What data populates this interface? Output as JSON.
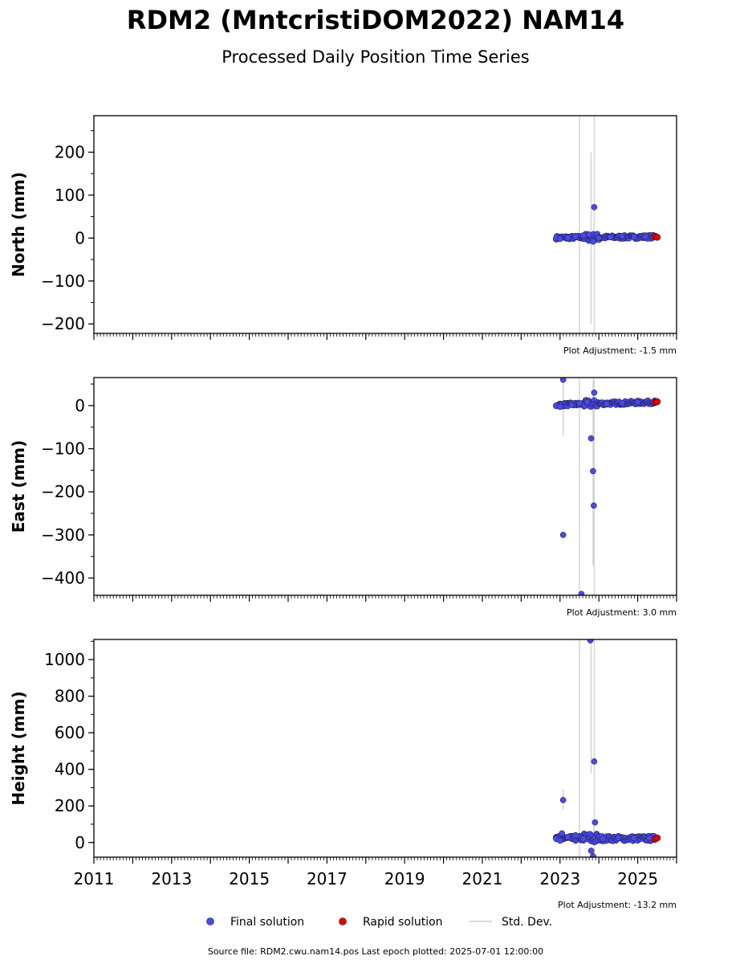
{
  "chart_data": {
    "type": "scatter",
    "title": "RDM2 (MntcristiDOM2022) NAM14",
    "subtitle": "Processed Daily Position Time Series",
    "footer": "Source file: RDM2.cwu.nam14.pos  Last epoch plotted: 2025-07-01 12:00:00",
    "xlim": [
      2011.0,
      2026.0
    ],
    "x_tick_labels": [
      "2011",
      "2013",
      "2015",
      "2017",
      "2019",
      "2021",
      "2023",
      "2025"
    ],
    "legend": {
      "placement": "bottom-center",
      "entries": [
        "Final solution",
        "Rapid solution",
        "Std. Dev."
      ]
    },
    "colors": {
      "final": "#4a4ae6",
      "rapid": "#e60000",
      "stddev": "#d3d3d3"
    },
    "panels": [
      {
        "ylabel": "North (mm)",
        "ylim": [
          -222,
          285
        ],
        "y_ticks": [
          -200,
          -100,
          0,
          100,
          200
        ],
        "y_tick_labels": [
          "−200",
          "−100",
          "0",
          "100",
          "200"
        ],
        "adjustment": "Plot Adjustment: -1.5 mm",
        "series": {
          "final_range": [
            2022.9,
            2025.45
          ],
          "final_points": [
            [
              2022.9,
              0
            ],
            [
              2023.0,
              -2
            ],
            [
              2023.2,
              1
            ],
            [
              2023.4,
              3
            ],
            [
              2023.6,
              6
            ],
            [
              2023.75,
              8
            ],
            [
              2023.85,
              -8
            ],
            [
              2023.88,
              72
            ],
            [
              2024.0,
              0
            ],
            [
              2024.3,
              2
            ],
            [
              2024.6,
              4
            ],
            [
              2024.9,
              3
            ],
            [
              2025.2,
              3
            ],
            [
              2025.4,
              3
            ]
          ],
          "rapid_points": [
            [
              2025.45,
              4
            ],
            [
              2025.5,
              2
            ]
          ],
          "stddev": [
            [
              2023.5,
              -222,
              285
            ],
            [
              2023.8,
              -200,
              200
            ],
            [
              2023.88,
              -222,
              285
            ]
          ]
        }
      },
      {
        "ylabel": "East (mm)",
        "ylim": [
          -440,
          65
        ],
        "y_ticks": [
          -400,
          -300,
          -200,
          -100,
          0
        ],
        "y_tick_labels": [
          "−400",
          "−300",
          "−200",
          "−100",
          "0"
        ],
        "adjustment": "Plot Adjustment: 3.0 mm",
        "series": {
          "final_range": [
            2022.9,
            2025.45
          ],
          "final_points": [
            [
              2022.9,
              -1
            ],
            [
              2023.0,
              -3
            ],
            [
              2023.08,
              60
            ],
            [
              2023.08,
              -300
            ],
            [
              2023.3,
              2
            ],
            [
              2023.5,
              5
            ],
            [
              2023.55,
              -437
            ],
            [
              2023.7,
              8
            ],
            [
              2023.8,
              -76
            ],
            [
              2023.85,
              -152
            ],
            [
              2023.87,
              -232
            ],
            [
              2023.88,
              30
            ],
            [
              2024.2,
              4
            ],
            [
              2024.6,
              6
            ],
            [
              2025.0,
              8
            ],
            [
              2025.4,
              9
            ]
          ],
          "rapid_points": [
            [
              2025.45,
              8
            ],
            [
              2025.5,
              9
            ]
          ],
          "stddev": [
            [
              2023.08,
              -70,
              60
            ],
            [
              2023.5,
              -440,
              65
            ],
            [
              2023.85,
              -370,
              60
            ],
            [
              2023.88,
              -440,
              65
            ]
          ]
        }
      },
      {
        "ylabel": "Height (mm)",
        "ylim": [
          -80,
          1110
        ],
        "y_ticks": [
          0,
          200,
          400,
          600,
          800,
          1000
        ],
        "y_tick_labels": [
          "0",
          "200",
          "400",
          "600",
          "800",
          "1000"
        ],
        "adjustment": "Plot Adjustment: -13.2 mm",
        "series": {
          "final_range": [
            2022.9,
            2025.45
          ],
          "final_points": [
            [
              2022.9,
              20
            ],
            [
              2023.0,
              10
            ],
            [
              2023.05,
              50
            ],
            [
              2023.08,
              232
            ],
            [
              2023.2,
              30
            ],
            [
              2023.4,
              40
            ],
            [
              2023.6,
              20
            ],
            [
              2023.78,
              1105
            ],
            [
              2023.8,
              -45
            ],
            [
              2023.85,
              -75
            ],
            [
              2023.88,
              443
            ],
            [
              2023.9,
              110
            ],
            [
              2024.1,
              20
            ],
            [
              2024.5,
              25
            ],
            [
              2024.9,
              25
            ],
            [
              2025.3,
              25
            ]
          ],
          "rapid_points": [
            [
              2025.45,
              20
            ],
            [
              2025.5,
              25
            ]
          ],
          "stddev": [
            [
              2023.08,
              180,
              290
            ],
            [
              2023.5,
              -80,
              1110
            ],
            [
              2023.8,
              380,
              1110
            ],
            [
              2023.88,
              -80,
              1110
            ]
          ]
        }
      }
    ]
  }
}
